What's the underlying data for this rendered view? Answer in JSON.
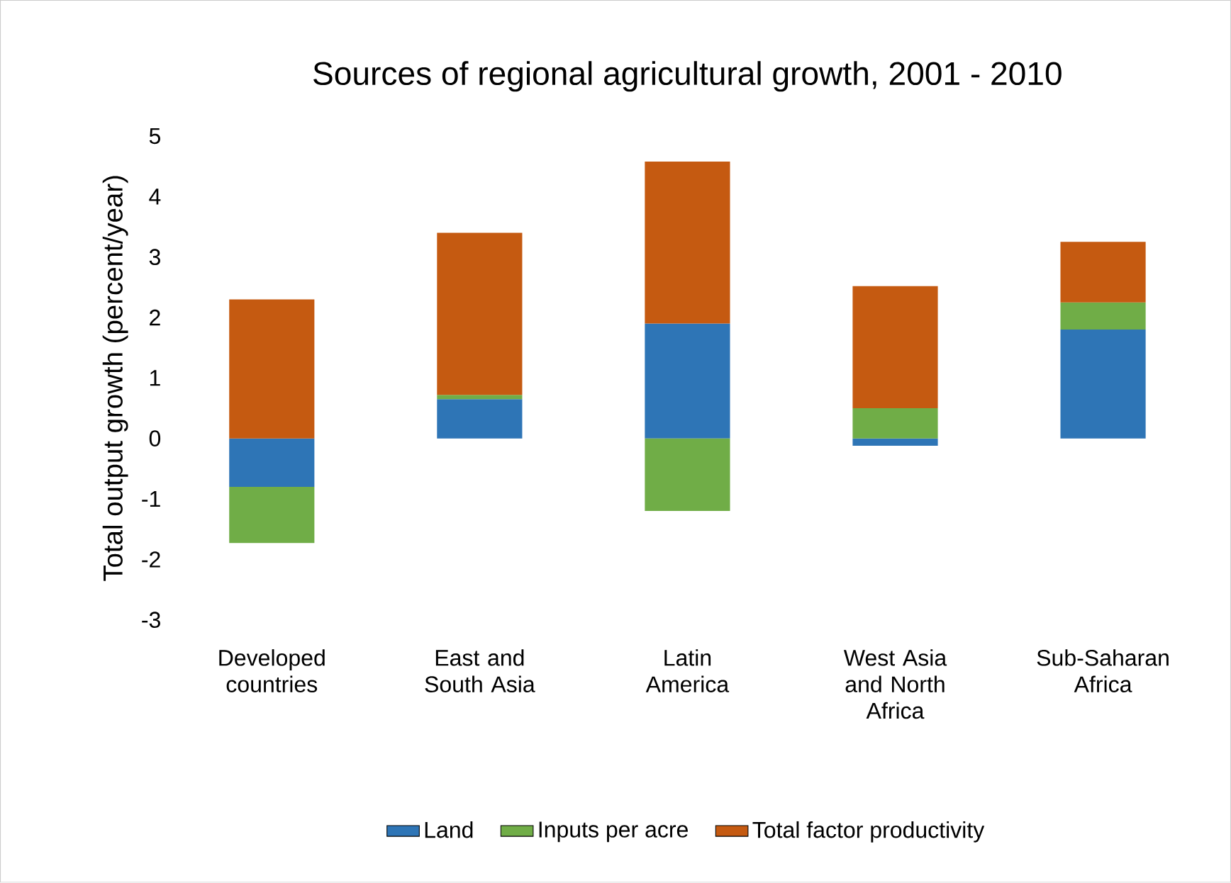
{
  "chart_data": {
    "type": "bar",
    "title": "Sources of regional agricultural growth, 2001 - 2010",
    "ylabel": "Total output growth (percent/year)",
    "categories": [
      "Developed countries",
      "East and South Asia",
      "Latin America",
      "West Asia and North Africa",
      "Sub-Saharan Africa"
    ],
    "stacked": true,
    "series": [
      {
        "name": "Land",
        "color": "#2e75b6",
        "values": [
          -0.8,
          0.65,
          1.9,
          -0.12,
          1.8
        ]
      },
      {
        "name": "Inputs per acre",
        "color": "#70ad47",
        "values": [
          -0.93,
          0.07,
          -1.2,
          0.5,
          0.45
        ]
      },
      {
        "name": "Total factor productivity",
        "color": "#c55a11",
        "values": [
          2.3,
          2.68,
          2.68,
          2.02,
          1.0
        ]
      }
    ],
    "ylim": [
      -3,
      5
    ],
    "yticks": [
      -3,
      -2,
      -1,
      0,
      1,
      2,
      3,
      4,
      5
    ],
    "legend": "bottom"
  }
}
